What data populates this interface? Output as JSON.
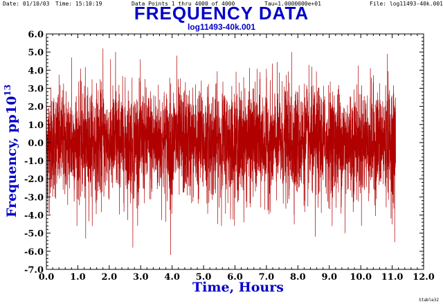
{
  "header": {
    "date": "Date: 01/10/03",
    "time": "Time: 15:10:19",
    "points": "Data Points 1 thru 4000 of 4000",
    "tau": "Tau=1.0000000e+01",
    "file": "File: log11493-40k.001"
  },
  "footer": "Stable32",
  "chart_data": {
    "type": "line",
    "title": "FREQUENCY DATA",
    "subtitle": "log11493-40k.001",
    "xlabel": "Time, Hours",
    "ylabel_main": "Frequency,  pp10",
    "ylabel_exp": "13",
    "xlim": [
      0.0,
      12.0
    ],
    "ylim": [
      -7.0,
      6.0
    ],
    "x_ticks": [
      "0.0",
      "1.0",
      "2.0",
      "3.0",
      "4.0",
      "5.0",
      "6.0",
      "7.0",
      "8.0",
      "9.0",
      "10.0",
      "11.0",
      "12.0"
    ],
    "y_ticks": [
      "6.0",
      "5.0",
      "4.0",
      "3.0",
      "2.0",
      "1.0",
      "0.0",
      "-1.0",
      "-2.0",
      "-3.0",
      "-4.0",
      "-5.0",
      "-6.0",
      "-7.0"
    ],
    "series_color": "#b00000",
    "series": [
      {
        "values_stats": {
          "count": 4000,
          "x_start": 0.0,
          "x_end": 11.11,
          "mean": 0.0,
          "stddev": 1.5
        },
        "notable_points": [
          {
            "x": 0.05,
            "y": -3.9
          },
          {
            "x": 0.8,
            "y": 4.7
          },
          {
            "x": 1.25,
            "y": -5.3
          },
          {
            "x": 1.8,
            "y": 5.2
          },
          {
            "x": 2.2,
            "y": 5.0
          },
          {
            "x": 2.75,
            "y": -5.8
          },
          {
            "x": 3.95,
            "y": -6.2
          },
          {
            "x": 4.15,
            "y": 4.8
          },
          {
            "x": 7.8,
            "y": 5.0
          },
          {
            "x": 8.55,
            "y": -5.2
          },
          {
            "x": 9.5,
            "y": 5.3
          },
          {
            "x": 9.5,
            "y": -5.0
          },
          {
            "x": 10.85,
            "y": 4.9
          },
          {
            "x": 11.08,
            "y": -5.5
          }
        ]
      }
    ]
  }
}
